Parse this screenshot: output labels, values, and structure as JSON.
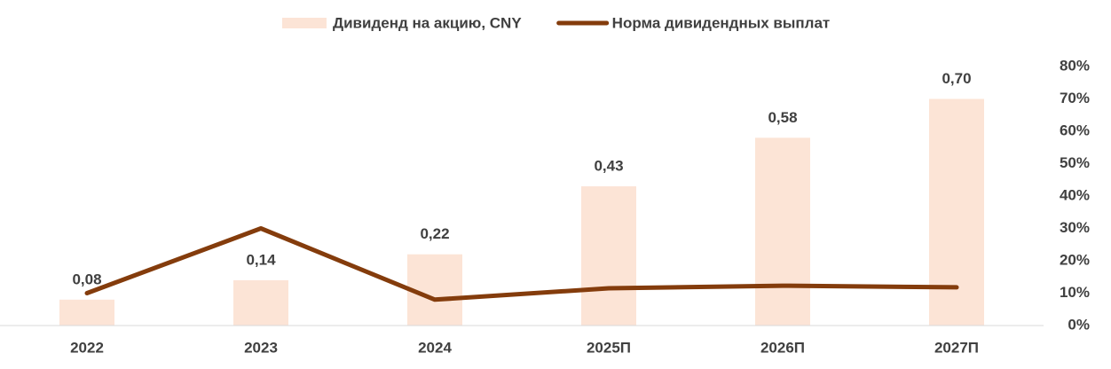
{
  "chart_data": {
    "type": "bar",
    "categories": [
      "2022",
      "2023",
      "2024",
      "2025П",
      "2026П",
      "2027П"
    ],
    "series": [
      {
        "name": "Дивиденд на акцию, CNY",
        "type": "bar",
        "color": "#fce4d6",
        "values": [
          0.08,
          0.14,
          0.22,
          0.43,
          0.58,
          0.7
        ],
        "value_labels": [
          "0,08",
          "0,14",
          "0,22",
          "0,43",
          "0,58",
          "0,70"
        ]
      },
      {
        "name": "Норма дивидендных выплат",
        "type": "line",
        "color": "#843c0c",
        "axis": "y2",
        "values": [
          10,
          30,
          8,
          11.5,
          12.3,
          11.8
        ]
      }
    ],
    "ylim": [
      0,
      0.8
    ],
    "y2lim": [
      0,
      80
    ],
    "y2ticks": [
      {
        "value": 0,
        "label": "0%"
      },
      {
        "value": 10,
        "label": "10%"
      },
      {
        "value": 20,
        "label": "20%"
      },
      {
        "value": 30,
        "label": "30%"
      },
      {
        "value": 40,
        "label": "40%"
      },
      {
        "value": 50,
        "label": "50%"
      },
      {
        "value": 60,
        "label": "60%"
      },
      {
        "value": 70,
        "label": "70%"
      },
      {
        "value": 80,
        "label": "80%"
      }
    ],
    "legend": "top"
  }
}
